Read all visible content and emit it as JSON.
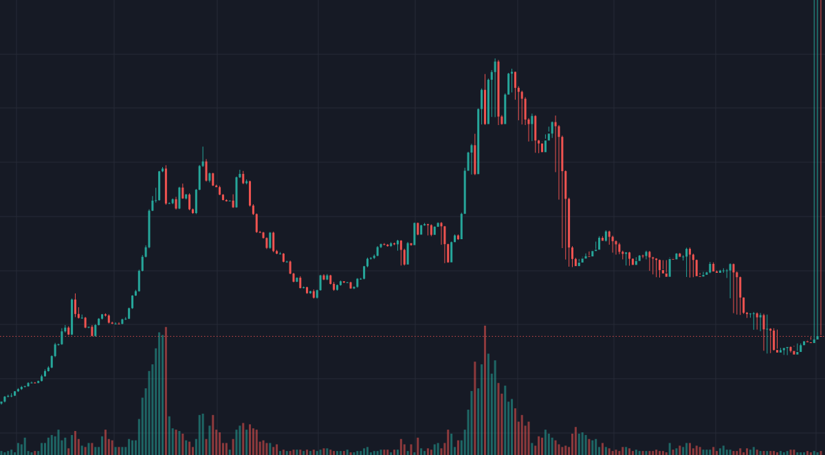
{
  "theme": {
    "background": "#161a25",
    "grid": "#262a36",
    "up_color": "#26a69a",
    "down_color": "#ef5350",
    "up_volume_color": "#26a69a",
    "down_volume_color": "#ef5350",
    "price_line_color": "#ef5350"
  },
  "chart_data": {
    "type": "candlestick",
    "title": "",
    "axis_labels_visible": false,
    "grid": true,
    "price_line": {
      "value": 100,
      "style": "dotted"
    },
    "ylim": [
      40,
      270
    ],
    "volume_max": 100,
    "ohlcv_series": {
      "o": [
        66,
        67,
        69.5,
        69.9,
        70,
        72.2,
        73.3,
        74.4,
        74.7,
        76.4,
        76.6,
        76.4,
        77.4,
        79.8,
        82.4,
        84.2,
        90,
        95.9,
        96,
        102.5,
        104.4,
        100.9,
        118.6,
        111.3,
        109.3,
        109.4,
        104.4,
        104.8,
        100.2,
        105.7,
        108.9,
        111.1,
        110.5,
        106.9,
        106.4,
        106.4,
        106.3,
        108.6,
        108.9,
        114.2,
        120.6,
        122.8,
        133.1,
        140.2,
        145,
        163.5,
        168.6,
        168.8,
        183.4,
        184.8,
        167.1,
        167.3,
        169.3,
        164.6,
        175.2,
        169.7,
        171.7,
        164.2,
        162.3,
        174.1,
        186.1,
        188.4,
        178.7,
        182.4,
        176.2,
        175.4,
        171.6,
        168.9,
        168.3,
        168.6,
        165.2,
        180.4,
        182.1,
        177.4,
        178.4,
        166.1,
        161.8,
        152.7,
        152.5,
        149.7,
        144.7,
        152.4,
        143.1,
        141.8,
        141.8,
        137.7,
        137.8,
        131.7,
        127.6,
        129.6,
        124.4,
        124.8,
        121.8,
        122.8,
        119.5,
        123.3,
        130.8,
        128.7,
        130.8,
        126.5,
        123.5,
        125.9,
        127.8,
        127.2,
        127.3,
        124.2,
        125,
        129.1,
        129.1,
        135.4,
        139.2,
        139.6,
        140.7,
        145.1,
        146.6,
        146.3,
        145.6,
        147,
        146.5,
        148.4,
        143.7,
        136.3,
        147.1,
        146.1,
        157.3,
        151.4,
        156.1,
        156.7,
        156.2,
        151.3,
        155.4,
        157.3,
        155.6,
        146.6,
        137.4,
        147.6,
        151,
        149.1,
        161.9,
        183.7,
        192.9,
        196.6,
        182,
        214.9,
        224.6,
        207.3,
        229.7,
        233.6,
        238.9,
        211.1,
        207.3,
        222.2,
        232.8,
        233.7,
        225.6,
        223.6,
        220.1,
        209.6,
        207.3,
        211.4,
        199,
        197.5,
        193.1,
        199,
        202.5,
        208.3,
        206.2,
        200.8,
        183.5,
        169.5,
        144.9,
        139.1,
        135.5,
        137.3,
        139.3,
        140.5,
        140.4,
        143.1,
        143.8,
        149.8,
        148.3,
        153,
        150.3,
        148.1,
        146.5,
        142.7,
        141.7,
        142.4,
        139.2,
        136.1,
        138.1,
        140.8,
        140.6,
        142.7,
        139.9,
        139.3,
        138.6,
        133.5,
        131.8,
        130.1,
        139.1,
        138.9,
        141.8,
        140.2,
        140.3,
        144.2,
        141.3,
        138.6,
        130.4,
        130.2,
        131.1,
        132.3,
        136.6,
        132.8,
        132.1,
        133.2,
        133.3,
        133.3,
        136.5,
        132.3,
        129.9,
        119.6,
        111.9,
        111.3,
        111.5,
        111.6,
        109.6,
        110.7,
        103.5,
        103.8,
        102.9,
        93.1,
        91.8,
        93,
        94.1,
        94.6,
        92.6,
        90.8,
        92.1,
        95.5,
        97.5,
        97,
        96.6,
        98.4,
        100.1
      ],
      "h": [
        66.3,
        69.8,
        70.5,
        71.2,
        72.3,
        73.8,
        74.9,
        75.1,
        76.8,
        77.1,
        76.9,
        77.6,
        80.6,
        83.3,
        84.9,
        90.4,
        96.7,
        96.3,
        104.1,
        105.7,
        105.1,
        119.1,
        121.7,
        114.7,
        111,
        109.8,
        104.9,
        105.7,
        106.2,
        109.2,
        111.3,
        111.6,
        111.1,
        107.4,
        107.1,
        107.1,
        108.9,
        109.7,
        114.5,
        120.8,
        123.5,
        133.7,
        141.1,
        146,
        164.2,
        170.9,
        175.1,
        183.6,
        185.6,
        186.5,
        167.7,
        169.7,
        170.5,
        175.6,
        177.2,
        172,
        172.3,
        164.6,
        174.5,
        186.6,
        195.9,
        189.6,
        182.8,
        182.7,
        176.7,
        176.1,
        171.9,
        169.3,
        168.7,
        171.8,
        180.8,
        184.2,
        183.6,
        179.3,
        178.7,
        166.8,
        162.1,
        153.3,
        152.8,
        150,
        152.7,
        152.9,
        143.7,
        142.6,
        142.1,
        138.2,
        138.3,
        132.1,
        129.8,
        130.4,
        125.2,
        125.1,
        123,
        123.7,
        123.6,
        131.1,
        131.4,
        131.5,
        131.1,
        127.5,
        126.2,
        128.2,
        127.9,
        127.5,
        127.6,
        125.2,
        129.4,
        129.5,
        135.6,
        139.8,
        140,
        141.4,
        145.6,
        146.9,
        147.1,
        146.7,
        147.6,
        147.4,
        148.8,
        148.6,
        144.3,
        147.7,
        146.6,
        157.5,
        157.5,
        156.4,
        157.3,
        156.9,
        156.6,
        155.6,
        157.6,
        157.8,
        155.8,
        146.8,
        147.9,
        151.5,
        151.5,
        162.5,
        185.2,
        193.3,
        197.3,
        202.4,
        215.2,
        225.3,
        232.6,
        230.3,
        234.6,
        240.5,
        239.7,
        211.8,
        222.8,
        233.2,
        235.3,
        233.8,
        226.4,
        224.2,
        220.9,
        210.3,
        212.6,
        211.8,
        199.3,
        198.3,
        199.9,
        203.5,
        208.6,
        211.6,
        206.8,
        201.5,
        183.9,
        170.1,
        145.6,
        139.7,
        137.7,
        139.9,
        141.9,
        140.9,
        143.6,
        144.1,
        150.6,
        150.6,
        153.6,
        153.4,
        150.9,
        148.5,
        147.3,
        143.3,
        142.6,
        142.7,
        139.4,
        138.4,
        141.1,
        141.3,
        143.3,
        143.2,
        140.2,
        139.5,
        138.8,
        133.9,
        132.2,
        139.6,
        139.7,
        142.1,
        142.2,
        141,
        144.8,
        144.9,
        141.8,
        138.8,
        131.1,
        131.3,
        132.6,
        137.6,
        137.4,
        133.3,
        133.6,
        134.4,
        134,
        136.9,
        136.8,
        132.8,
        130.2,
        119.7,
        112.3,
        111.7,
        112.3,
        112.1,
        111.8,
        111.4,
        111,
        104.1,
        104.1,
        103.4,
        94.2,
        93.7,
        94.5,
        94.9,
        94.8,
        92.6,
        92.6,
        95.8,
        98.1,
        98.3,
        97.6,
        98.7,
        100.6,
        100.6
      ],
      "l": [
        65.5,
        66.6,
        69.1,
        69.2,
        69.8,
        71.9,
        72.9,
        74.2,
        74.6,
        76.2,
        76.2,
        76.3,
        77.2,
        79.6,
        82.2,
        83.9,
        89.5,
        95.3,
        95.7,
        101.9,
        100.6,
        100.6,
        109.7,
        109,
        108.8,
        104.1,
        104.1,
        99.9,
        99.8,
        105.5,
        108.5,
        110,
        106.5,
        106.2,
        106,
        106.1,
        106.1,
        108.3,
        108.7,
        113.9,
        120.4,
        122.6,
        132.8,
        139.9,
        144.5,
        163.3,
        167.6,
        168.6,
        183,
        166.5,
        166.9,
        166.8,
        164.1,
        164.3,
        169.5,
        169.2,
        163.7,
        161.9,
        161.8,
        173.9,
        185.6,
        178.2,
        177.8,
        176,
        175.7,
        171.4,
        168.7,
        168.1,
        168.2,
        164.9,
        165,
        180,
        176.9,
        176.8,
        165.6,
        161.3,
        152.3,
        152.2,
        149.4,
        144.1,
        144.2,
        142.5,
        141.5,
        141.4,
        137.4,
        137.2,
        131.4,
        127.3,
        127.4,
        124.2,
        124.2,
        121.5,
        121.5,
        119.1,
        119.1,
        123.1,
        128.4,
        128.4,
        126.2,
        123,
        123.1,
        125.6,
        126.9,
        127,
        124,
        123.9,
        124.6,
        128.6,
        128.8,
        134.9,
        138.8,
        139.1,
        140.5,
        144.6,
        146,
        145.3,
        145.2,
        146.1,
        143.3,
        135.8,
        135.8,
        145.6,
        145.8,
        151,
        151.1,
        155.5,
        155.9,
        151,
        150.6,
        155,
        155.3,
        146.3,
        137,
        137.2,
        146.9,
        148.7,
        148.7,
        161.4,
        183.3,
        192.2,
        181.8,
        181.5,
        214.5,
        207.1,
        206.9,
        229,
        210.9,
        210.8,
        206.8,
        207,
        222,
        225,
        223.3,
        219.6,
        209.2,
        207.1,
        206.8,
        198.5,
        198.7,
        192.8,
        192.6,
        198.5,
        202.1,
        206,
        200.3,
        183,
        169.1,
        144.6,
        138.8,
        135.2,
        135,
        137,
        139.1,
        140.2,
        140.1,
        142.9,
        143.5,
        147.9,
        147.6,
        149.9,
        147.9,
        146.3,
        142.3,
        141.3,
        141.5,
        138.9,
        135.8,
        135.7,
        137.7,
        140,
        140.2,
        139.5,
        138.9,
        133.1,
        131.3,
        129.9,
        129.7,
        138.5,
        138.5,
        139.9,
        139.8,
        140.1,
        140.7,
        138.3,
        130,
        129.7,
        129.9,
        130.7,
        132.1,
        132.6,
        131.8,
        131.9,
        132.9,
        132.8,
        132.9,
        132.1,
        129.5,
        119.2,
        111.7,
        111,
        110.8,
        111.3,
        109.3,
        109.4,
        103.3,
        103.4,
        102.6,
        92.7,
        91.3,
        91.5,
        92.8,
        93.7,
        92.2,
        90.6,
        90.5,
        91.8,
        95.2,
        96.4,
        96.4,
        96.2,
        97.9,
        99.6
      ],
      "c": [
        67,
        69.5,
        69.9,
        70,
        72.2,
        73.3,
        74.4,
        74.7,
        76.4,
        76.6,
        76.4,
        77.4,
        79.8,
        82.4,
        84.2,
        90,
        95.9,
        96,
        102.5,
        104.4,
        100.9,
        118.6,
        111.3,
        109.3,
        109.4,
        104.4,
        104.8,
        100.2,
        105.7,
        108.9,
        111.1,
        110.5,
        106.9,
        106.4,
        106.4,
        106.3,
        108.6,
        108.9,
        114.2,
        120.6,
        122.8,
        133.1,
        140.2,
        145,
        163.5,
        168.6,
        168.8,
        183.4,
        184.8,
        167.1,
        167.3,
        169.3,
        164.6,
        175.2,
        169.7,
        171.7,
        164.2,
        162.3,
        174.1,
        186.1,
        188.4,
        178.7,
        182.4,
        176.2,
        175.4,
        171.6,
        168.9,
        168.3,
        168.6,
        165.2,
        180.4,
        182.1,
        177.4,
        178.4,
        166.1,
        161.8,
        152.7,
        152.5,
        149.7,
        144.7,
        152.4,
        143.1,
        141.8,
        141.8,
        137.7,
        137.8,
        131.7,
        127.6,
        129.6,
        124.4,
        124.8,
        121.8,
        122.8,
        119.5,
        123.3,
        130.8,
        128.7,
        130.8,
        126.5,
        123.5,
        125.9,
        127.8,
        127.2,
        127.3,
        124.2,
        125,
        129.1,
        129.1,
        135.4,
        139.2,
        139.6,
        140.7,
        145.1,
        146.6,
        146.3,
        145.6,
        147,
        146.5,
        148.4,
        143.7,
        136.3,
        147.1,
        146.1,
        157.3,
        151.4,
        156.1,
        156.7,
        156.2,
        151.3,
        155.4,
        157.3,
        155.6,
        146.6,
        137.4,
        147.6,
        151,
        149.1,
        161.9,
        183.7,
        192.9,
        196.6,
        182,
        214.9,
        224.6,
        207.3,
        229.7,
        233.6,
        238.9,
        211.1,
        207.3,
        222.2,
        232.8,
        233.7,
        225.6,
        223.6,
        220.1,
        209.6,
        207.3,
        211.4,
        199,
        197.5,
        193.1,
        199,
        202.5,
        208.3,
        206.2,
        200.8,
        183.5,
        169.5,
        144.9,
        139.1,
        135.5,
        137.3,
        139.3,
        140.5,
        140.4,
        143.1,
        143.8,
        149.8,
        148.3,
        153,
        150.3,
        148.1,
        146.5,
        142.7,
        141.7,
        142.4,
        139.2,
        136.1,
        138.1,
        140.8,
        140.6,
        142.7,
        139.9,
        139.3,
        138.6,
        133.5,
        131.8,
        130.1,
        139.1,
        138.9,
        141.8,
        140.2,
        140.3,
        144.2,
        141.3,
        138.6,
        130.4,
        130.2,
        131.1,
        132.3,
        136.6,
        132.8,
        132.1,
        133.2,
        133.3,
        133.3,
        136.5,
        132.3,
        129.9,
        119.6,
        111.9,
        111.3,
        111.5,
        111.6,
        109.6,
        110.7,
        103.5,
        103.8,
        102.9,
        93.1,
        91.8,
        93,
        94.1,
        94.6,
        92.6,
        90.8,
        92.1,
        95.5,
        97.5,
        97,
        96.6,
        98.4,
        100.1,
        99.8
      ],
      "v": [
        3,
        2,
        3,
        4,
        2,
        9,
        8,
        13,
        3,
        2,
        3,
        3,
        9,
        9,
        13,
        15,
        14,
        19,
        11,
        13,
        5,
        15,
        18,
        12,
        7,
        6,
        9,
        9,
        6,
        6,
        14,
        19,
        12,
        11,
        6,
        6,
        6,
        6,
        12,
        11,
        11,
        27,
        43,
        50,
        63,
        68,
        80,
        92,
        90,
        96,
        29,
        20,
        19,
        18,
        16,
        11,
        10,
        6,
        12,
        30,
        31,
        12,
        22,
        30,
        19,
        17,
        9,
        9,
        4,
        12,
        19,
        22,
        24,
        19,
        23,
        20,
        19,
        10,
        11,
        9,
        9,
        6,
        8,
        3,
        4,
        3,
        3,
        4,
        4,
        4,
        3,
        4,
        3,
        4,
        3,
        4,
        5,
        5,
        4,
        3,
        3,
        3,
        3,
        4,
        2,
        2,
        3,
        3,
        5,
        6,
        2,
        3,
        3,
        4,
        4,
        4,
        2,
        4,
        4,
        12,
        8,
        3,
        8,
        2,
        13,
        5,
        3,
        5,
        4,
        8,
        9,
        5,
        9,
        19,
        16,
        6,
        11,
        11,
        19,
        34,
        48,
        70,
        50,
        68,
        97,
        76,
        61,
        71,
        54,
        46,
        52,
        40,
        42,
        35,
        25,
        30,
        22,
        25,
        9,
        7,
        14,
        13,
        19,
        16,
        13,
        11,
        8,
        6,
        7,
        6,
        16,
        21,
        16,
        17,
        15,
        12,
        11,
        12,
        6,
        9,
        6,
        5,
        3,
        4,
        3,
        6,
        6,
        5,
        3,
        4,
        3,
        3,
        3,
        3,
        3,
        4,
        3,
        3,
        2,
        9,
        4,
        5,
        7,
        6,
        9,
        9,
        5,
        7,
        6,
        4,
        4,
        4,
        6,
        3,
        5,
        7,
        4,
        4,
        3,
        3,
        5,
        2,
        5,
        4,
        6,
        4,
        3,
        3,
        3,
        3,
        3,
        2,
        3,
        2,
        3,
        4,
        4,
        2,
        2,
        2,
        3,
        2,
        3,
        2,
        3,
        3,
        2,
        2,
        2,
        2
      ]
    }
  }
}
